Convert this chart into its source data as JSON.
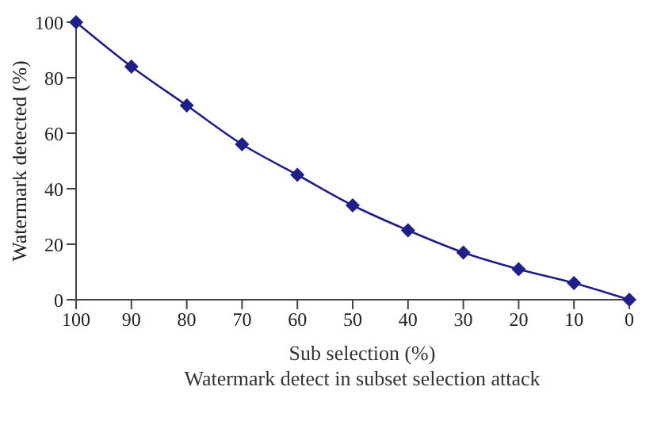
{
  "chart_data": {
    "type": "line",
    "xlabel": "Sub selection (%)",
    "ylabel": "Watermark detected (%)",
    "annotations": [
      "Watermark detect in subset selection attack"
    ],
    "x": [
      100,
      90,
      80,
      70,
      60,
      50,
      40,
      30,
      20,
      10,
      0
    ],
    "series": [
      {
        "color": "#1f1f8a",
        "values": [
          100,
          84,
          70,
          56,
          45,
          34,
          25,
          17,
          11,
          6,
          0
        ]
      }
    ],
    "xlim": [
      100,
      0
    ],
    "xticks": [
      100,
      90,
      80,
      70,
      60,
      50,
      40,
      30,
      20,
      10,
      0
    ],
    "ylim": [
      0,
      100
    ],
    "yticks": [
      0,
      20,
      40,
      60,
      80,
      100
    ],
    "grid": false,
    "legend": false,
    "marker": "diamond",
    "line_style": "solid"
  }
}
